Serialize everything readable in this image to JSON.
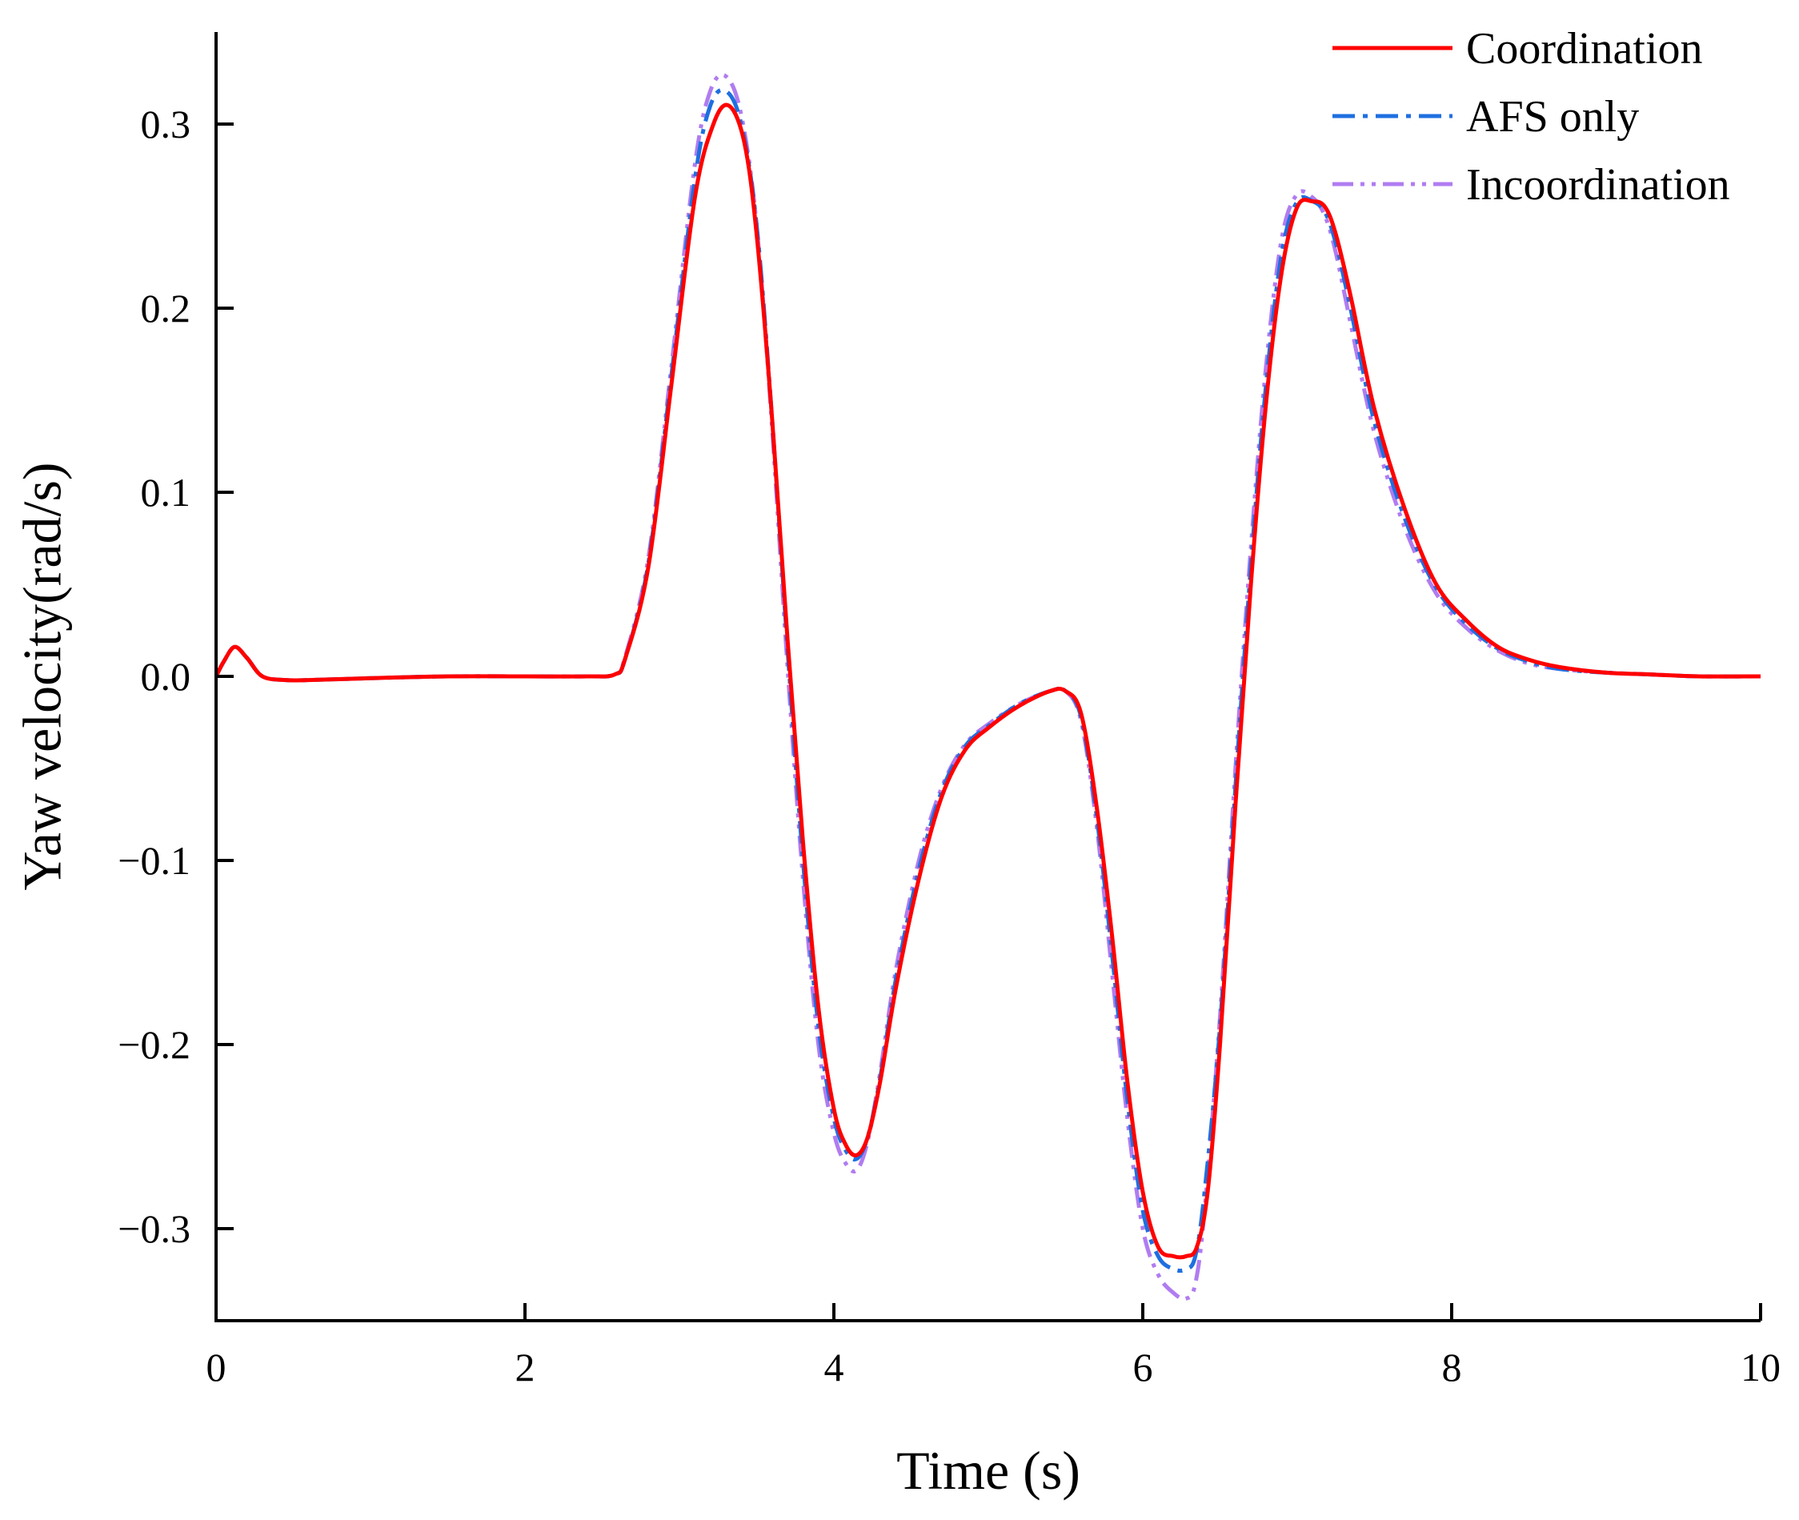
{
  "chart_data": {
    "type": "line",
    "title": "",
    "xlabel": "Time (s)",
    "ylabel": "Yaw velocity(rad/s)",
    "xlim": [
      0,
      10
    ],
    "ylim": [
      -0.35,
      0.35
    ],
    "x_ticks": [
      0,
      2,
      4,
      6,
      8,
      10
    ],
    "x_tick_labels": [
      "0",
      "2",
      "4",
      "6",
      "8",
      "10"
    ],
    "y_ticks": [
      -0.3,
      -0.2,
      -0.1,
      0.0,
      0.1,
      0.2,
      0.3
    ],
    "y_tick_labels": [
      "−0.3",
      "−0.2",
      "−0.1",
      "0.0",
      "0.1",
      "0.2",
      "0.3"
    ],
    "grid": false,
    "legend_position": "top-right",
    "series": [
      {
        "name": "Coordination",
        "color": "#ff0000",
        "style": "solid",
        "x": [
          0,
          0.05,
          0.12,
          0.2,
          0.3,
          0.45,
          0.6,
          1.0,
          1.5,
          2.0,
          2.4,
          2.58,
          2.65,
          2.8,
          2.95,
          3.1,
          3.22,
          3.32,
          3.42,
          3.5,
          3.6,
          3.7,
          3.8,
          3.9,
          4.0,
          4.08,
          4.15,
          4.22,
          4.3,
          4.4,
          4.55,
          4.7,
          4.85,
          5.0,
          5.2,
          5.4,
          5.5,
          5.6,
          5.7,
          5.8,
          5.9,
          6.0,
          6.1,
          6.2,
          6.28,
          6.35,
          6.42,
          6.5,
          6.6,
          6.7,
          6.8,
          6.9,
          7.0,
          7.1,
          7.18,
          7.25,
          7.35,
          7.5,
          7.7,
          7.9,
          8.1,
          8.3,
          8.5,
          8.7,
          9.0,
          9.3,
          9.6,
          10.0
        ],
        "y": [
          0.0,
          0.008,
          0.016,
          0.01,
          0.0,
          -0.002,
          -0.002,
          -0.001,
          0.0,
          0.0,
          0.0,
          0.001,
          0.01,
          0.06,
          0.16,
          0.26,
          0.3,
          0.31,
          0.29,
          0.24,
          0.14,
          0.02,
          -0.09,
          -0.18,
          -0.235,
          -0.255,
          -0.26,
          -0.25,
          -0.22,
          -0.17,
          -0.11,
          -0.065,
          -0.04,
          -0.028,
          -0.016,
          -0.008,
          -0.008,
          -0.02,
          -0.07,
          -0.14,
          -0.22,
          -0.28,
          -0.31,
          -0.315,
          -0.315,
          -0.31,
          -0.28,
          -0.2,
          -0.07,
          0.05,
          0.15,
          0.22,
          0.255,
          0.258,
          0.255,
          0.24,
          0.205,
          0.145,
          0.09,
          0.05,
          0.03,
          0.016,
          0.009,
          0.005,
          0.002,
          0.001,
          0.0,
          0.0
        ]
      },
      {
        "name": "AFS only",
        "color": "#1f6fe0",
        "style": "dashdot",
        "x": [
          0,
          0.05,
          0.12,
          0.2,
          0.3,
          0.45,
          0.6,
          1.0,
          1.5,
          2.0,
          2.4,
          2.58,
          2.65,
          2.8,
          2.95,
          3.1,
          3.2,
          3.3,
          3.4,
          3.5,
          3.6,
          3.7,
          3.8,
          3.9,
          4.0,
          4.08,
          4.15,
          4.22,
          4.3,
          4.4,
          4.55,
          4.7,
          4.85,
          5.0,
          5.2,
          5.4,
          5.5,
          5.6,
          5.7,
          5.8,
          5.9,
          6.0,
          6.1,
          6.2,
          6.28,
          6.34,
          6.4,
          6.5,
          6.6,
          6.7,
          6.8,
          6.9,
          7.0,
          7.1,
          7.18,
          7.25,
          7.35,
          7.5,
          7.7,
          7.9,
          8.1,
          8.3,
          8.5,
          8.7,
          9.0,
          9.3,
          9.6,
          10.0
        ],
        "y": [
          0.0,
          0.008,
          0.016,
          0.01,
          0.0,
          -0.002,
          -0.002,
          -0.001,
          0.0,
          0.0,
          0.0,
          0.001,
          0.01,
          0.062,
          0.165,
          0.27,
          0.31,
          0.318,
          0.3,
          0.245,
          0.14,
          0.015,
          -0.1,
          -0.19,
          -0.24,
          -0.258,
          -0.262,
          -0.25,
          -0.218,
          -0.165,
          -0.105,
          -0.062,
          -0.038,
          -0.027,
          -0.015,
          -0.008,
          -0.008,
          -0.022,
          -0.075,
          -0.15,
          -0.23,
          -0.29,
          -0.315,
          -0.322,
          -0.322,
          -0.315,
          -0.28,
          -0.19,
          -0.06,
          0.06,
          0.16,
          0.23,
          0.258,
          0.258,
          0.252,
          0.235,
          0.198,
          0.138,
          0.085,
          0.048,
          0.028,
          0.015,
          0.008,
          0.004,
          0.002,
          0.001,
          0.0,
          0.0
        ]
      },
      {
        "name": "Incoordination",
        "color": "#b07cf0",
        "style": "dashdotdot",
        "x": [
          0,
          0.05,
          0.12,
          0.2,
          0.3,
          0.45,
          0.6,
          1.0,
          1.5,
          2.0,
          2.4,
          2.58,
          2.65,
          2.8,
          2.95,
          3.1,
          3.2,
          3.3,
          3.4,
          3.5,
          3.6,
          3.7,
          3.8,
          3.9,
          4.0,
          4.08,
          4.15,
          4.22,
          4.3,
          4.4,
          4.55,
          4.7,
          4.85,
          5.0,
          5.2,
          5.4,
          5.5,
          5.6,
          5.7,
          5.8,
          5.9,
          6.0,
          6.1,
          6.2,
          6.28,
          6.34,
          6.4,
          6.5,
          6.6,
          6.7,
          6.8,
          6.9,
          7.0,
          7.1,
          7.18,
          7.25,
          7.35,
          7.5,
          7.7,
          7.9,
          8.1,
          8.3,
          8.5,
          8.7,
          9.0,
          9.3,
          9.6,
          10.0
        ],
        "y": [
          0.0,
          0.008,
          0.016,
          0.01,
          0.0,
          -0.002,
          -0.002,
          -0.001,
          0.0,
          0.0,
          0.0,
          0.001,
          0.011,
          0.065,
          0.17,
          0.278,
          0.318,
          0.326,
          0.305,
          0.245,
          0.135,
          0.005,
          -0.11,
          -0.2,
          -0.248,
          -0.265,
          -0.268,
          -0.252,
          -0.215,
          -0.16,
          -0.1,
          -0.06,
          -0.037,
          -0.026,
          -0.015,
          -0.008,
          -0.008,
          -0.024,
          -0.08,
          -0.16,
          -0.24,
          -0.3,
          -0.325,
          -0.335,
          -0.338,
          -0.33,
          -0.29,
          -0.185,
          -0.05,
          0.07,
          0.17,
          0.238,
          0.262,
          0.26,
          0.25,
          0.23,
          0.19,
          0.132,
          0.08,
          0.045,
          0.026,
          0.014,
          0.007,
          0.004,
          0.002,
          0.001,
          0.0,
          0.0
        ]
      }
    ]
  }
}
